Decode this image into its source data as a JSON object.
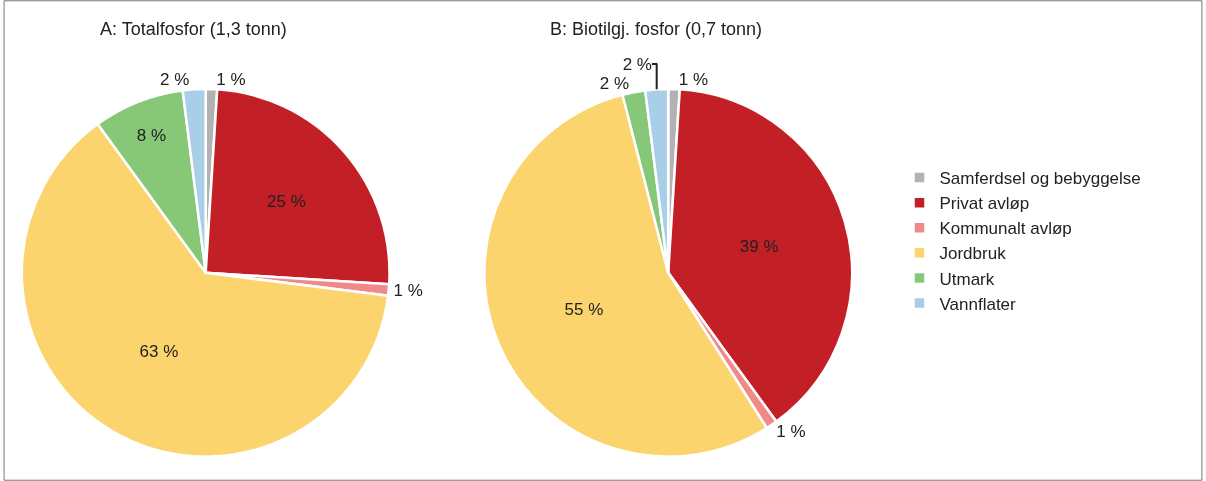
{
  "chart_data": [
    {
      "type": "pie",
      "title": "A: Totalfosfor (1,3 tonn)",
      "categories": [
        "Samferdsel og bebyggelse",
        "Privat avløp",
        "Kommunalt avløp",
        "Jordbruk",
        "Utmark",
        "Vannflater"
      ],
      "values": [
        1,
        25,
        1,
        63,
        8,
        2
      ],
      "value_labels": [
        "1 %",
        "25 %",
        "1 %",
        "63 %",
        "8 %",
        "2 %"
      ],
      "colors": [
        "#b2b2b2",
        "#c21f26",
        "#f08a8a",
        "#fbd46d",
        "#87c878",
        "#a9cfe8"
      ],
      "legend": "right"
    },
    {
      "type": "pie",
      "title": "B: Biotilgj. fosfor (0,7 tonn)",
      "categories": [
        null,
        null,
        null,
        null,
        null,
        null
      ],
      "values": [
        1,
        39,
        1,
        55,
        2,
        2
      ],
      "value_labels": [
        "1 %",
        "39 %",
        "1 %",
        "55 %",
        "2 %",
        "2 %"
      ],
      "colors": [
        "#b2b2b2",
        "#c21f26",
        "#f08a8a",
        "#fbd46d",
        "#87c878",
        "#a9cfe8"
      ]
    }
  ]
}
